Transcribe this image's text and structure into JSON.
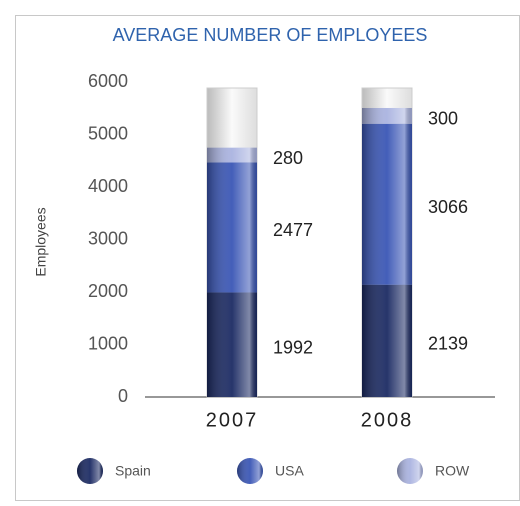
{
  "chart_data": {
    "type": "stacked-bar",
    "title": "AVERAGE NUMBER OF EMPLOYEES",
    "y_label": "Employees",
    "categories": [
      "2007",
      "2008"
    ],
    "series": [
      {
        "name": "Spain",
        "color": "#1b2a63",
        "values": [
          1992,
          2139
        ]
      },
      {
        "name": "USA",
        "color": "#3a56b5",
        "values": [
          2477,
          3066
        ]
      },
      {
        "name": "ROW",
        "color": "#aab3e0",
        "values": [
          280,
          300
        ]
      }
    ],
    "ylim": [
      0,
      6000
    ],
    "yticks": [
      0,
      1000,
      2000,
      3000,
      4000,
      5000,
      6000
    ]
  }
}
